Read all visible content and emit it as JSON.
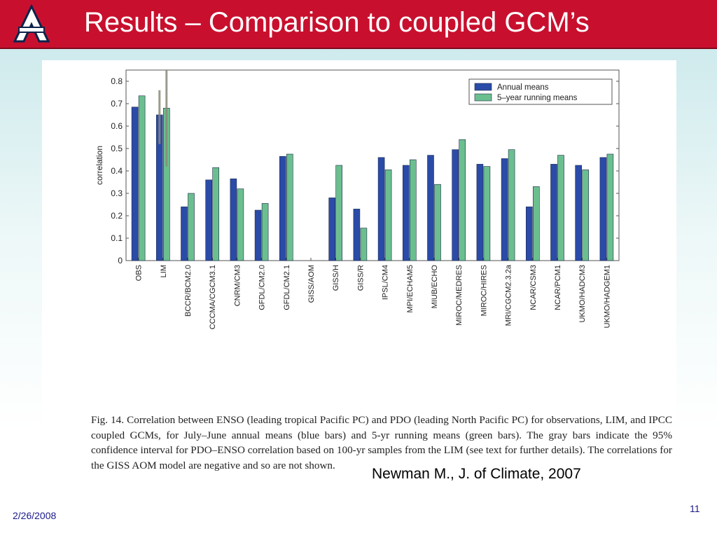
{
  "slide": {
    "title": "Results – Comparison to coupled GCM’s",
    "citation": "Newman M., J. of Climate, 2007",
    "date": "2/26/2008",
    "page_number": "11",
    "logo_letter": "A"
  },
  "figure": {
    "caption": "Fig. 14. Correlation between ENSO (leading tropical Pacific PC) and PDO (leading North Pacific PC) for observations, LIM, and IPCC coupled GCMs, for July–June annual means (blue bars) and 5-yr running means (green bars). The gray bars indicate the 95% confidence interval for PDO–ENSO correlation based on 100-yr samples from the LIM (see text for further details). The correlations for the GISS AOM model are negative and so are not shown."
  },
  "colors": {
    "title_bar": "#c8102e",
    "annual": "#2b4ba8",
    "running": "#6bbf8f",
    "confidence": "#8a8a7a"
  },
  "chart_data": {
    "type": "bar",
    "ylabel": "correlation",
    "xlabel": "",
    "ylim": [
      0,
      0.85
    ],
    "yticks": [
      "0",
      "0.1",
      "0.2",
      "0.3",
      "0.4",
      "0.5",
      "0.6",
      "0.7",
      "0.8"
    ],
    "legend_position": "top-right",
    "categories": [
      "OBS",
      "LIM",
      "BCCR/BCM2.0",
      "CCCMA/CGCM3.1",
      "CNRM/CM3",
      "GFDL/CM2.0",
      "GFDL/CM2.1",
      "GISS/AOM",
      "GISS/H",
      "GISS/R",
      "IPSL/CM4",
      "MPI/ECHAM5",
      "MIUB/ECHO",
      "MIROC/MEDRES",
      "MIROC/HIRES",
      "MRI/CGCM2.3.2a",
      "NCAR/CSM3",
      "NCAR/PCM1",
      "UKMO/HADCM3",
      "UKMO/HADGEM1"
    ],
    "series": [
      {
        "name": "Annual means",
        "values": [
          0.685,
          0.65,
          0.24,
          0.36,
          0.365,
          0.225,
          0.465,
          null,
          0.28,
          0.23,
          0.46,
          0.425,
          0.47,
          0.495,
          0.43,
          0.455,
          0.24,
          0.43,
          0.425,
          0.46
        ]
      },
      {
        "name": "5–year running means",
        "values": [
          0.735,
          0.68,
          0.3,
          0.415,
          0.32,
          0.255,
          0.475,
          null,
          0.425,
          0.145,
          0.405,
          0.45,
          0.34,
          0.54,
          0.42,
          0.495,
          0.33,
          0.47,
          0.405,
          0.475
        ]
      }
    ],
    "confidence_intervals": {
      "annual_LIM": [
        0.52,
        0.76
      ],
      "running_LIM": [
        0.42,
        0.85
      ]
    }
  }
}
